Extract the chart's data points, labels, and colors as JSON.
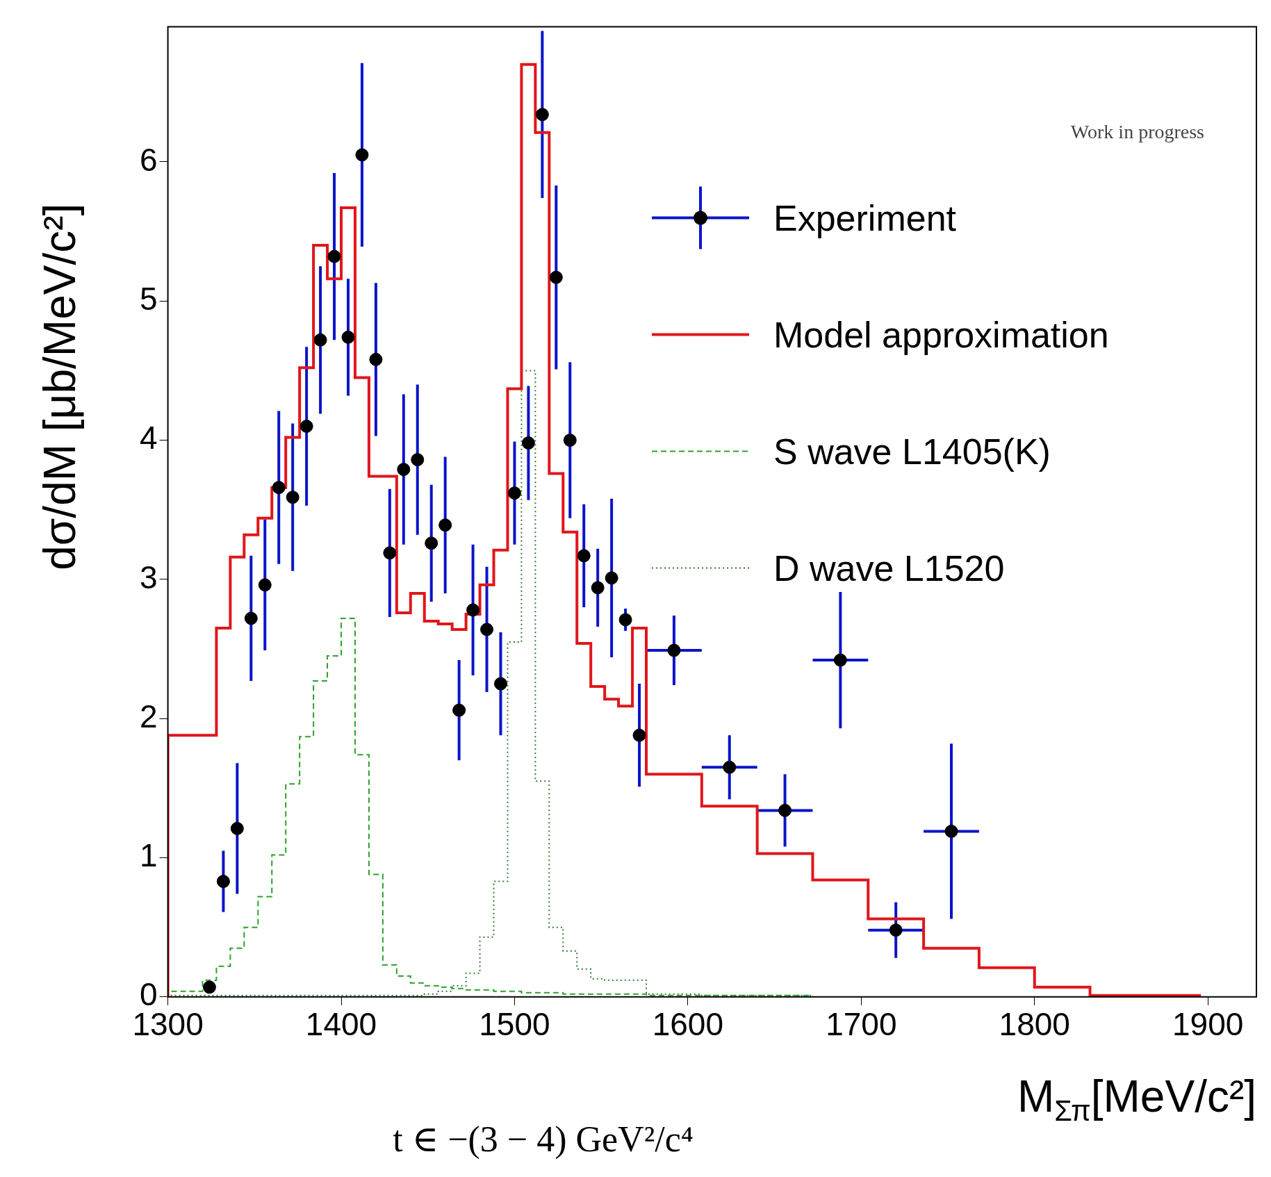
{
  "chart_data": {
    "type": "step",
    "xlabel": "M$_{Σπ}$[MeV/c²]",
    "ylabel": "dσ/dM [μb/MeV/c²]",
    "xlim": [
      1300,
      1928
    ],
    "xticks": [
      1300,
      1400,
      1500,
      1600,
      1700,
      1800,
      1900
    ],
    "ylim": [
      0,
      6.97
    ],
    "yticks": [
      0,
      1,
      2,
      3,
      4,
      5,
      6
    ],
    "grid": false,
    "legend": "top right",
    "annotations": [
      "Work in progress",
      "t ∈ −(3 − 4) GeV²/c⁴"
    ],
    "series": [
      {
        "name": "Experiment",
        "type": "scatter",
        "color": "#000000",
        "marker": "circle",
        "x": [
          1324,
          1332,
          1340,
          1348,
          1356,
          1364,
          1372,
          1380,
          1388,
          1396,
          1404,
          1412,
          1420,
          1428,
          1436,
          1444,
          1452,
          1460,
          1468,
          1476,
          1484,
          1492,
          1500,
          1508,
          1516,
          1524,
          1532,
          1540,
          1548,
          1556,
          1564,
          1572,
          1592,
          1624,
          1656,
          1688,
          1720,
          1752
        ],
        "values": [
          0.07,
          0.83,
          1.21,
          2.72,
          2.96,
          3.66,
          3.59,
          4.1,
          4.72,
          5.32,
          4.74,
          6.05,
          4.58,
          3.19,
          3.79,
          3.86,
          3.26,
          3.39,
          2.06,
          2.78,
          2.64,
          2.25,
          3.62,
          3.98,
          6.34,
          5.17,
          4.0,
          3.17,
          2.94,
          3.01,
          2.71,
          1.88,
          2.49,
          1.65,
          1.34,
          2.42,
          0.48,
          1.19
        ],
        "errors": [
          null,
          0.22,
          0.47,
          0.45,
          0.47,
          0.55,
          0.53,
          0.57,
          0.53,
          0.6,
          0.42,
          0.66,
          0.55,
          0.46,
          0.54,
          0.54,
          0.42,
          0.49,
          0.36,
          0.47,
          0.45,
          0.37,
          0.37,
          0.41,
          0.6,
          0.66,
          0.56,
          0.37,
          0.28,
          0.57,
          0.08,
          0.37,
          0.25,
          0.23,
          0.26,
          0.49,
          0.2,
          0.63
        ],
        "xerrors": [
          null,
          null,
          null,
          null,
          null,
          null,
          null,
          null,
          null,
          null,
          null,
          null,
          null,
          null,
          null,
          null,
          null,
          null,
          null,
          null,
          null,
          null,
          null,
          null,
          null,
          null,
          null,
          null,
          null,
          null,
          null,
          null,
          16,
          16,
          16,
          16,
          16,
          16
        ]
      },
      {
        "name": "Model approximation",
        "color": "#e0161b",
        "line_style": "solid",
        "x": [
          1300,
          1328,
          1336,
          1344,
          1352,
          1360,
          1368,
          1376,
          1384,
          1392,
          1400,
          1408,
          1416,
          1424,
          1432,
          1440,
          1448,
          1456,
          1464,
          1472,
          1480,
          1488,
          1496,
          1504,
          1512,
          1520,
          1528,
          1536,
          1544,
          1552,
          1560,
          1568,
          1576,
          1608,
          1640,
          1672,
          1704,
          1736,
          1768,
          1800,
          1832,
          1864,
          1896
        ],
        "values": [
          0,
          1.88,
          2.65,
          3.16,
          3.32,
          3.44,
          3.66,
          4.02,
          4.52,
          5.4,
          5.16,
          5.67,
          4.45,
          3.74,
          3.74,
          2.76,
          2.9,
          2.7,
          2.68,
          2.64,
          2.75,
          2.96,
          3.21,
          4.37,
          6.7,
          6.21,
          3.76,
          3.34,
          2.54,
          2.23,
          2.14,
          2.09,
          2.65,
          1.6,
          1.37,
          1.03,
          0.84,
          0.56,
          0.35,
          0.21,
          0.07,
          0.01,
          0.01
        ]
      },
      {
        "name": "S wave L1405(K)",
        "color": "#2ca02c",
        "line_style": "dashed",
        "x": [
          1300,
          1320,
          1328,
          1336,
          1344,
          1352,
          1360,
          1368,
          1376,
          1384,
          1392,
          1400,
          1408,
          1416,
          1424,
          1432,
          1440,
          1448,
          1456,
          1464,
          1472,
          1480,
          1488,
          1496,
          1504,
          1512,
          1520,
          1528,
          1536,
          1544,
          1552,
          1560,
          1568,
          1576,
          1608,
          1640,
          1672
        ],
        "values": [
          0,
          0.04,
          0.12,
          0.22,
          0.35,
          0.5,
          0.72,
          1.02,
          1.53,
          1.87,
          2.27,
          2.45,
          2.72,
          1.74,
          0.88,
          0.23,
          0.15,
          0.1,
          0.08,
          0.07,
          0.06,
          0.05,
          0.05,
          0.04,
          0.04,
          0.03,
          0.03,
          0.03,
          0.02,
          0.02,
          0.02,
          0.02,
          0.02,
          0.02,
          0.01,
          0.01,
          0.01
        ]
      },
      {
        "name": "D wave L1520",
        "color": "#2e7d32",
        "line_style": "dotted",
        "x": [
          1300,
          1440,
          1448,
          1456,
          1464,
          1472,
          1480,
          1488,
          1496,
          1504,
          1512,
          1520,
          1528,
          1536,
          1544,
          1552,
          1560,
          1568,
          1576,
          1608,
          1640,
          1672
        ],
        "values": [
          0,
          0.01,
          0.01,
          0.02,
          0.04,
          0.08,
          0.17,
          0.43,
          0.83,
          2.55,
          4.5,
          1.55,
          0.5,
          0.33,
          0.2,
          0.13,
          0.12,
          0.12,
          0.12,
          0.02,
          0.01,
          0.01
        ]
      }
    ]
  }
}
